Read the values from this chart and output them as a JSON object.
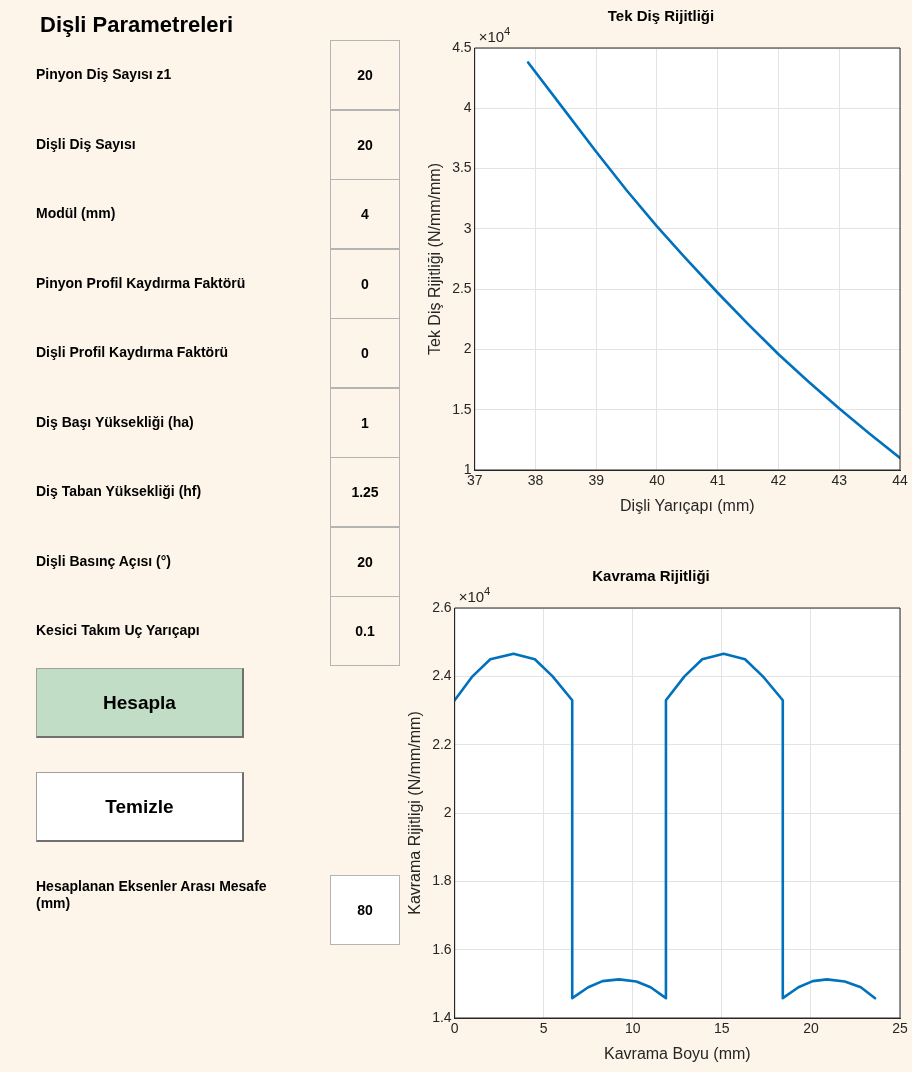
{
  "chart_data": [
    {
      "type": "other",
      "title": "Dişli Parametreleri",
      "annotations": [
        "Pinyon Diş Sayısı z1",
        "20",
        "Dişli Diş Sayısı",
        "20",
        "Modül (mm)",
        "4",
        "Pinyon Profil Kaydırma Faktörü",
        "0",
        "Dişli Profil Kaydırma Faktörü",
        "0",
        "Diş Başı Yüksekliği (ha)",
        "1",
        "Diş Taban Yüksekliği (hf)",
        "1.25",
        "Dişli Basınç Açısı (°)",
        "20",
        "Kesici Takım Uç Yarıçapı",
        "0.1",
        "Hesapla",
        "Temizle",
        "Hesaplanan Eksenler Arası Mesafe (mm)",
        "80"
      ]
    },
    {
      "type": "line",
      "title": "Tek Diş Rijitliği",
      "xlabel": "Dişli Yarıçapı (mm)",
      "ylabel": "Tek Diş Rijitliği (N/mm/mm)",
      "annotations": [
        "×10$^{4}$"
      ],
      "x": [
        37.88,
        38.5,
        39,
        39.5,
        40,
        40.5,
        41,
        41.5,
        42,
        42.5,
        43,
        43.5,
        44
      ],
      "series": [
        {
          "color": "#0072bd",
          "values": [
            4.38,
            3.97,
            3.64,
            3.32,
            3.02,
            2.74,
            2.47,
            2.21,
            1.96,
            1.73,
            1.51,
            1.3,
            1.1
          ]
        }
      ],
      "xlim": [
        37,
        44
      ],
      "xticks": [
        37,
        38,
        39,
        40,
        41,
        42,
        43,
        44
      ],
      "ylim": [
        1,
        4.5
      ],
      "yticks": [
        1,
        1.5,
        2,
        2.5,
        3,
        3.5,
        4,
        4.5
      ],
      "grid": true
    },
    {
      "type": "line",
      "title": "Kavrama Rijitliği",
      "xlabel": "Kavrama Boyu (mm)",
      "ylabel": "Kavrama Rijitligi (N/mm/mm)",
      "annotations": [
        "×10$^{4}$"
      ],
      "x": [
        0,
        1,
        2,
        3.3,
        4.5,
        5.5,
        6.6,
        6.6,
        7.5,
        8.3,
        9.23,
        10.2,
        11,
        11.86,
        11.86,
        12.9,
        13.9,
        15.1,
        16.3,
        17.3,
        18.42,
        18.42,
        19.3,
        20.1,
        20.9,
        21.9,
        22.8,
        23.6
      ],
      "series": [
        {
          "color": "#0072bd",
          "values": [
            2.33,
            2.4,
            2.45,
            2.466,
            2.45,
            2.4,
            2.33,
            1.458,
            1.49,
            1.508,
            1.513,
            1.507,
            1.49,
            1.458,
            2.33,
            2.4,
            2.45,
            2.466,
            2.45,
            2.4,
            2.33,
            1.458,
            1.49,
            1.508,
            1.513,
            1.507,
            1.49,
            1.458
          ]
        }
      ],
      "xlim": [
        0,
        25
      ],
      "xticks": [
        0,
        5,
        10,
        15,
        20,
        25
      ],
      "ylim": [
        1.4,
        2.6
      ],
      "yticks": [
        1.4,
        1.6,
        1.8,
        2,
        2.2,
        2.4,
        2.6
      ],
      "grid": true
    }
  ]
}
